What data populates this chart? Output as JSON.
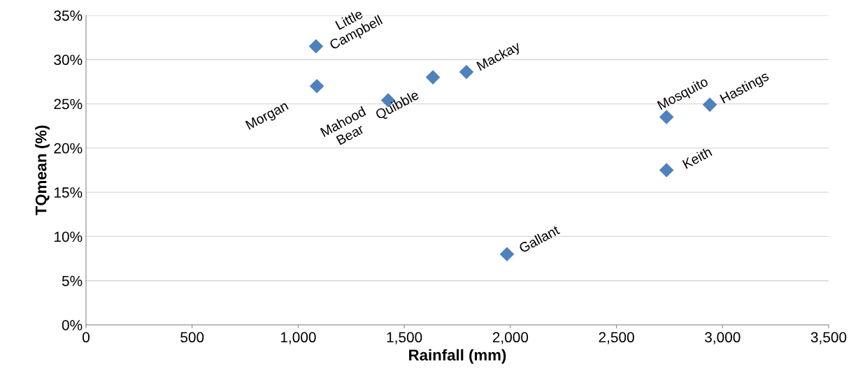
{
  "chart_data": {
    "type": "scatter",
    "xlabel": "Rainfall (mm)",
    "ylabel": "TQmean (%)",
    "x": [
      1084,
      1088,
      1424,
      1635,
      1793,
      1984,
      2736,
      2736,
      2940
    ],
    "values": [
      31.5,
      27.0,
      25.4,
      28.0,
      28.6,
      8.0,
      23.5,
      17.5,
      24.9
    ],
    "color": "#4f81bd",
    "marker": "diamond",
    "grid": "y",
    "xlim": [
      0,
      3500
    ],
    "ylim": [
      0,
      35
    ],
    "xticks": [
      0,
      {
        "value": 500,
        "label": "500"
      },
      {
        "value": 1000,
        "label": "1,000"
      },
      {
        "value": 1500,
        "label": "1,500"
      },
      {
        "value": 2000,
        "label": "2,000"
      },
      {
        "value": 2500,
        "label": "2,500"
      },
      {
        "value": 3000,
        "label": "3,000"
      },
      {
        "value": 3500,
        "label": "3,500"
      }
    ],
    "yticks": [
      {
        "value": 0,
        "label": "0%"
      },
      {
        "value": 5,
        "label": "5%"
      },
      {
        "value": 10,
        "label": "10%"
      },
      {
        "value": 15,
        "label": "15%"
      },
      {
        "value": 20,
        "label": "20%"
      },
      {
        "value": 25,
        "label": "25%"
      },
      {
        "value": 30,
        "label": "30%"
      },
      {
        "value": 35,
        "label": "35%"
      }
    ],
    "annotations": [
      {
        "text": "Little\nCampbell",
        "x": 1084,
        "y": 31.5
      },
      {
        "text": "Morgan",
        "x": 1088,
        "y": 27.0
      },
      {
        "text": "Mahood\nBear",
        "x": 1424,
        "y": 25.4
      },
      {
        "text": "Quibble",
        "x": 1635,
        "y": 28.0
      },
      {
        "text": "Mackay",
        "x": 1793,
        "y": 28.6
      },
      {
        "text": "Gallant",
        "x": 1984,
        "y": 8.0
      },
      {
        "text": "Mosquito",
        "x": 2736,
        "y": 23.5
      },
      {
        "text": "Keith",
        "x": 2736,
        "y": 17.5
      },
      {
        "text": "Hastings",
        "x": 2940,
        "y": 24.9
      }
    ]
  }
}
